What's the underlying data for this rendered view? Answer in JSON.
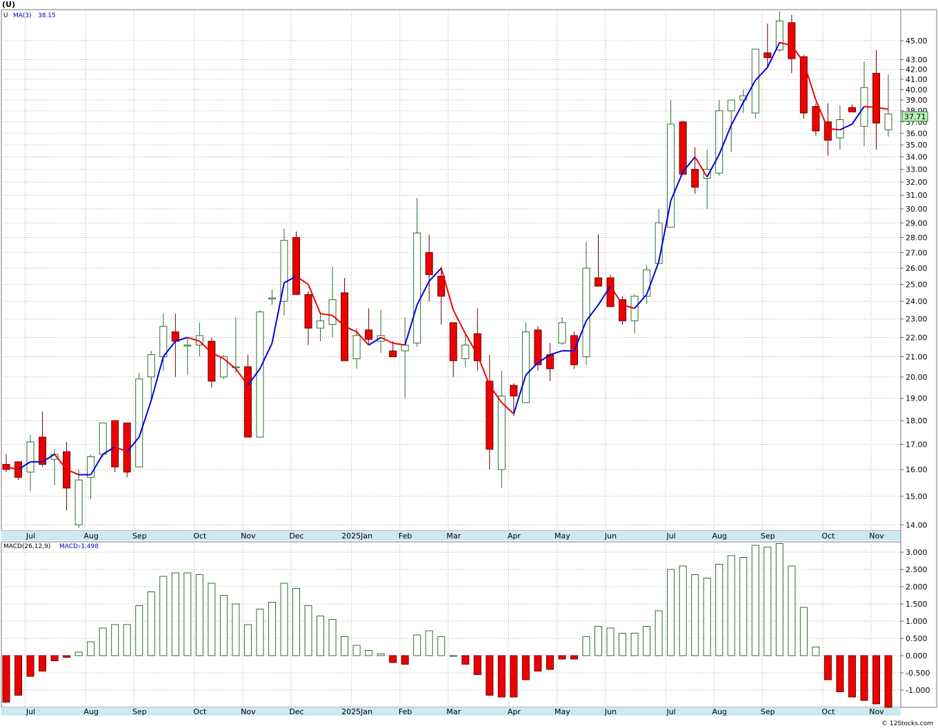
{
  "title": "(U)",
  "ma_legend": {
    "symbol": "U",
    "label": "MA(3)",
    "value": "38.15"
  },
  "macd_legend": {
    "label": "MACD(26,12,9)",
    "value_label": "MACD:",
    "value": "-1.498"
  },
  "last_price_tag": "37.71",
  "credit": "© 12Stocks.com",
  "colors": {
    "up_candle_border": "#2e6b2e",
    "down_candle_fill": "#ee0000",
    "ma_up": "#0000dd",
    "ma_down": "#ee0000",
    "macd_pos": "#2e6b2e",
    "macd_neg": "#ee0000",
    "axis_strip": "#cce8f0",
    "price_tag_bg": "#b8f0b8"
  },
  "chart_data": [
    {
      "type": "candlestick",
      "scale": "log",
      "ylim": [
        13.8,
        48.5
      ],
      "y_ticks": [
        "14.00",
        "15.00",
        "16.00",
        "17.00",
        "18.00",
        "19.00",
        "20.00",
        "21.00",
        "22.00",
        "23.00",
        "24.00",
        "25.00",
        "26.00",
        "27.00",
        "28.00",
        "29.00",
        "30.00",
        "31.00",
        "32.00",
        "33.00",
        "34.00",
        "35.00",
        "36.00",
        "37.00",
        "38.00",
        "39.00",
        "40.00",
        "41.00",
        "42.00",
        "43.00",
        "45.00"
      ],
      "x_labels": [
        "Jul",
        "Aug",
        "Sep",
        "Oct",
        "Nov",
        "Dec",
        "2025Jan",
        "Feb",
        "Mar",
        "Apr",
        "May",
        "Jun",
        "Jul",
        "Aug",
        "Sep",
        "Oct",
        "Nov"
      ],
      "x_label_weeks": [
        1,
        6,
        10,
        15,
        19,
        23,
        28,
        32,
        36,
        41,
        45,
        49,
        54,
        58,
        62,
        67,
        71
      ],
      "candles": [
        [
          16.2,
          16.6,
          15.9,
          16.0
        ],
        [
          16.3,
          16.3,
          15.6,
          15.7
        ],
        [
          15.9,
          17.4,
          15.2,
          17.1
        ],
        [
          17.3,
          18.4,
          16.1,
          16.2
        ],
        [
          16.4,
          16.8,
          15.4,
          16.6
        ],
        [
          16.7,
          17.1,
          14.5,
          15.3
        ],
        [
          14.0,
          16.0,
          13.9,
          15.6
        ],
        [
          15.7,
          16.6,
          14.9,
          16.5
        ],
        [
          16.6,
          17.9,
          16.5,
          17.9
        ],
        [
          18.0,
          18.0,
          15.9,
          16.1
        ],
        [
          17.9,
          17.9,
          15.7,
          15.9
        ],
        [
          16.1,
          20.2,
          16.1,
          19.9
        ],
        [
          20.0,
          21.3,
          18.9,
          21.1
        ],
        [
          21.0,
          23.3,
          20.3,
          22.6
        ],
        [
          22.3,
          23.3,
          20.0,
          21.8
        ],
        [
          21.6,
          22.0,
          20.1,
          21.6
        ],
        [
          21.6,
          22.8,
          21.0,
          22.1
        ],
        [
          21.8,
          22.0,
          19.5,
          19.8
        ],
        [
          20.0,
          21.1,
          19.9,
          21.0
        ],
        [
          20.5,
          23.1,
          20.2,
          20.5
        ],
        [
          20.5,
          21.1,
          17.3,
          17.3
        ],
        [
          17.3,
          23.5,
          17.3,
          23.4
        ],
        [
          24.2,
          24.7,
          23.8,
          24.2
        ],
        [
          24.0,
          28.6,
          23.2,
          27.8
        ],
        [
          28.0,
          28.4,
          24.4,
          24.4
        ],
        [
          24.4,
          24.6,
          21.6,
          22.5
        ],
        [
          22.5,
          23.4,
          21.8,
          22.9
        ],
        [
          22.7,
          26.1,
          22.0,
          24.1
        ],
        [
          24.5,
          25.4,
          20.8,
          20.8
        ],
        [
          20.9,
          22.5,
          20.4,
          22.1
        ],
        [
          22.4,
          23.6,
          21.6,
          21.9
        ],
        [
          21.8,
          23.5,
          21.2,
          22.1
        ],
        [
          21.3,
          21.8,
          21.0,
          21.0
        ],
        [
          21.3,
          23.1,
          19.0,
          21.6
        ],
        [
          21.7,
          30.8,
          21.5,
          28.3
        ],
        [
          27.0,
          28.2,
          24.0,
          25.6
        ],
        [
          25.5,
          26.1,
          22.7,
          24.3
        ],
        [
          22.8,
          22.8,
          20.0,
          20.8
        ],
        [
          20.9,
          22.2,
          20.5,
          21.6
        ],
        [
          22.2,
          23.6,
          20.3,
          20.8
        ],
        [
          19.8,
          21.1,
          16.0,
          16.8
        ],
        [
          16.0,
          20.3,
          15.3,
          19.1
        ],
        [
          19.6,
          19.7,
          18.2,
          19.1
        ],
        [
          18.8,
          22.8,
          18.8,
          22.3
        ],
        [
          22.4,
          22.6,
          20.3,
          20.6
        ],
        [
          21.1,
          21.7,
          19.8,
          20.4
        ],
        [
          21.7,
          23.1,
          21.6,
          22.8
        ],
        [
          22.1,
          22.3,
          20.4,
          20.6
        ],
        [
          21.0,
          27.7,
          20.6,
          26.0
        ],
        [
          25.4,
          28.2,
          24.9,
          24.9
        ],
        [
          25.4,
          25.6,
          23.7,
          23.7
        ],
        [
          24.1,
          24.3,
          22.7,
          22.9
        ],
        [
          22.9,
          24.4,
          22.2,
          24.3
        ],
        [
          24.3,
          26.2,
          23.9,
          25.9
        ],
        [
          26.3,
          30.0,
          26.3,
          29.0
        ],
        [
          28.7,
          39.0,
          28.7,
          36.8
        ],
        [
          37.0,
          37.1,
          32.6,
          32.6
        ],
        [
          33.0,
          34.8,
          31.1,
          31.6
        ],
        [
          32.3,
          34.6,
          30.0,
          33.0
        ],
        [
          32.7,
          39.0,
          32.5,
          38.0
        ],
        [
          38.0,
          39.0,
          34.4,
          39.0
        ],
        [
          39.0,
          40.0,
          37.8,
          39.4
        ],
        [
          37.8,
          44.1,
          37.3,
          44.1
        ],
        [
          43.7,
          46.9,
          42.1,
          43.2
        ],
        [
          44.0,
          48.3,
          43.8,
          47.2
        ],
        [
          47.0,
          47.9,
          41.6,
          43.1
        ],
        [
          43.3,
          43.5,
          37.3,
          37.8
        ],
        [
          38.4,
          38.7,
          35.8,
          36.2
        ],
        [
          37.0,
          38.7,
          34.1,
          35.4
        ],
        [
          35.6,
          38.5,
          34.6,
          37.2
        ],
        [
          38.3,
          38.6,
          37.9,
          37.9
        ],
        [
          36.6,
          42.8,
          34.9,
          40.2
        ],
        [
          41.6,
          44.0,
          34.6,
          36.9
        ],
        [
          36.3,
          41.5,
          35.7,
          37.71
        ]
      ],
      "ma3": [
        16.1,
        16.0,
        16.3,
        16.3,
        16.6,
        16.0,
        15.8,
        15.8,
        16.6,
        16.9,
        16.7,
        17.3,
        18.9,
        21.0,
        21.8,
        22.0,
        21.8,
        21.2,
        20.9,
        20.4,
        19.6,
        20.4,
        21.7,
        25.1,
        25.5,
        25.0,
        23.3,
        23.2,
        22.6,
        22.3,
        21.6,
        22.0,
        21.7,
        21.6,
        23.8,
        25.2,
        26.0,
        23.5,
        22.2,
        21.1,
        19.6,
        18.8,
        18.3,
        20.1,
        20.7,
        21.1,
        21.3,
        21.3,
        22.9,
        23.8,
        24.9,
        23.8,
        23.6,
        24.4,
        26.4,
        30.6,
        32.8,
        34.0,
        32.4,
        34.2,
        36.7,
        38.8,
        40.9,
        42.2,
        44.8,
        44.5,
        42.7,
        39.0,
        36.4,
        36.3,
        36.8,
        38.4,
        38.3,
        38.15
      ],
      "macd": [
        -1.35,
        -1.15,
        -0.6,
        -0.45,
        -0.15,
        -0.05,
        0.1,
        0.4,
        0.8,
        0.9,
        0.9,
        1.45,
        1.85,
        2.3,
        2.4,
        2.4,
        2.35,
        2.1,
        1.75,
        1.5,
        0.9,
        1.35,
        1.55,
        2.1,
        1.95,
        1.45,
        1.15,
        1.05,
        0.55,
        0.3,
        0.15,
        0.05,
        -0.2,
        -0.25,
        0.6,
        0.72,
        0.55,
        0.0,
        -0.25,
        -0.55,
        -1.15,
        -1.2,
        -1.2,
        -0.7,
        -0.45,
        -0.4,
        -0.1,
        -0.1,
        0.55,
        0.85,
        0.8,
        0.65,
        0.65,
        0.85,
        1.3,
        2.5,
        2.6,
        2.35,
        2.25,
        2.65,
        2.9,
        2.85,
        3.2,
        3.15,
        3.25,
        2.6,
        1.4,
        0.25,
        -0.7,
        -1.05,
        -1.2,
        -1.3,
        -1.4,
        -1.5
      ],
      "macd_ylim": [
        -1.5,
        3.3
      ],
      "macd_ticks": [
        "3.000",
        "2.500",
        "2.000",
        "1.500",
        "1.000",
        "0.500",
        "0.000",
        "-0.500",
        "-1.000"
      ],
      "macd_tick_values": [
        3.0,
        2.5,
        2.0,
        1.5,
        1.0,
        0.5,
        0.0,
        -0.5,
        -1.0
      ]
    }
  ]
}
